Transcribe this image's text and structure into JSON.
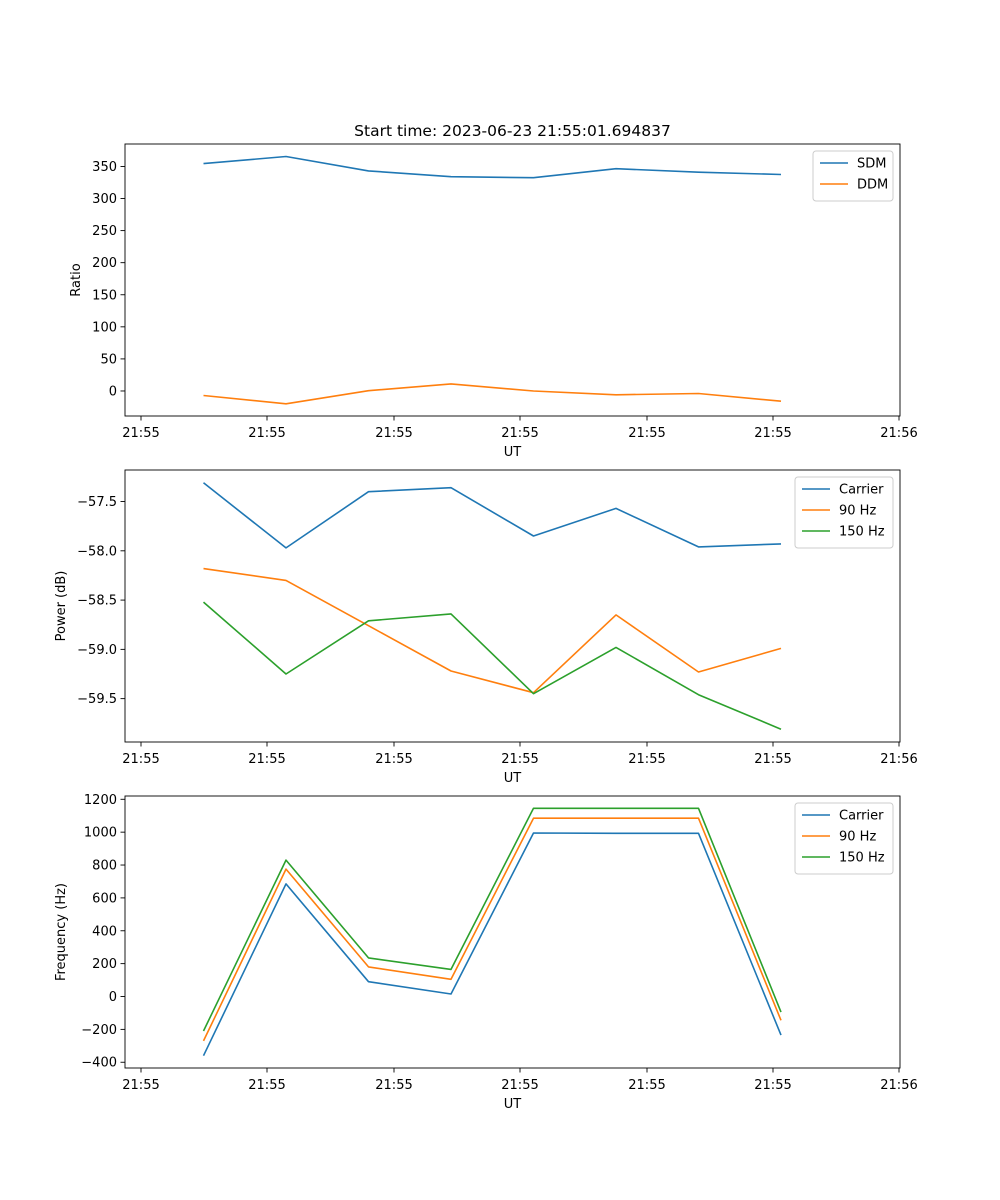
{
  "title": "Start time: 2023-06-23 21:55:01.694837",
  "chart_data": [
    {
      "type": "line",
      "title": "Start time: 2023-06-23 21:55:01.694837",
      "xlabel": "UT",
      "ylabel": "Ratio",
      "x_tick_labels": [
        "21:55",
        "21:55",
        "21:55",
        "21:55",
        "21:55",
        "21:55",
        "21:56"
      ],
      "y_ticks": [
        0,
        50,
        100,
        150,
        200,
        250,
        300,
        350
      ],
      "y_tick_labels": [
        "0",
        "50",
        "100",
        "150",
        "200",
        "250",
        "300",
        "350"
      ],
      "ylim": [
        -39,
        385
      ],
      "grid": false,
      "legend": "top-right",
      "series": [
        {
          "name": "SDM",
          "color": "#1f77b4",
          "values": [
            354.5,
            365.5,
            343,
            334,
            332.5,
            346.5,
            341,
            337.5
          ]
        },
        {
          "name": "DDM",
          "color": "#ff7f0e",
          "values": [
            -7,
            -20,
            0.5,
            11,
            0,
            -6,
            -4,
            -16
          ]
        }
      ]
    },
    {
      "type": "line",
      "xlabel": "UT",
      "ylabel": "Power (dB)",
      "x_tick_labels": [
        "21:55",
        "21:55",
        "21:55",
        "21:55",
        "21:55",
        "21:55",
        "21:56"
      ],
      "y_ticks": [
        -59.5,
        -59.0,
        -58.5,
        -58.0,
        -57.5
      ],
      "y_tick_labels": [
        "−59.5",
        "−59.0",
        "−58.5",
        "−58.0",
        "−57.5"
      ],
      "ylim": [
        -59.94,
        -57.18
      ],
      "grid": false,
      "legend": "top-right",
      "series": [
        {
          "name": "Carrier",
          "color": "#1f77b4",
          "values": [
            -57.31,
            -57.97,
            -57.4,
            -57.36,
            -57.85,
            -57.57,
            -57.96,
            -57.93
          ]
        },
        {
          "name": "90 Hz",
          "color": "#ff7f0e",
          "values": [
            -58.18,
            -58.3,
            -58.76,
            -59.22,
            -59.44,
            -58.65,
            -59.23,
            -58.99
          ]
        },
        {
          "name": "150 Hz",
          "color": "#2ca02c",
          "values": [
            -58.52,
            -59.25,
            -58.71,
            -58.64,
            -59.45,
            -58.98,
            -59.46,
            -59.81
          ]
        }
      ]
    },
    {
      "type": "line",
      "xlabel": "UT",
      "ylabel": "Frequency (Hz)",
      "x_tick_labels": [
        "21:55",
        "21:55",
        "21:55",
        "21:55",
        "21:55",
        "21:55",
        "21:56"
      ],
      "y_ticks": [
        -400,
        -200,
        0,
        200,
        400,
        600,
        800,
        1000,
        1200
      ],
      "y_tick_labels": [
        "−400",
        "−200",
        "0",
        "200",
        "400",
        "600",
        "800",
        "1000",
        "1200"
      ],
      "ylim": [
        -435,
        1220
      ],
      "grid": false,
      "legend": "top-right",
      "series": [
        {
          "name": "Carrier",
          "color": "#1f77b4",
          "values": [
            -360,
            685,
            90,
            15,
            995,
            993,
            993,
            -235
          ]
        },
        {
          "name": "90 Hz",
          "color": "#ff7f0e",
          "values": [
            -270,
            775,
            180,
            105,
            1085,
            1085,
            1085,
            -145
          ]
        },
        {
          "name": "150 Hz",
          "color": "#2ca02c",
          "values": [
            -210,
            830,
            235,
            165,
            1145,
            1145,
            1145,
            -95
          ]
        }
      ]
    }
  ]
}
